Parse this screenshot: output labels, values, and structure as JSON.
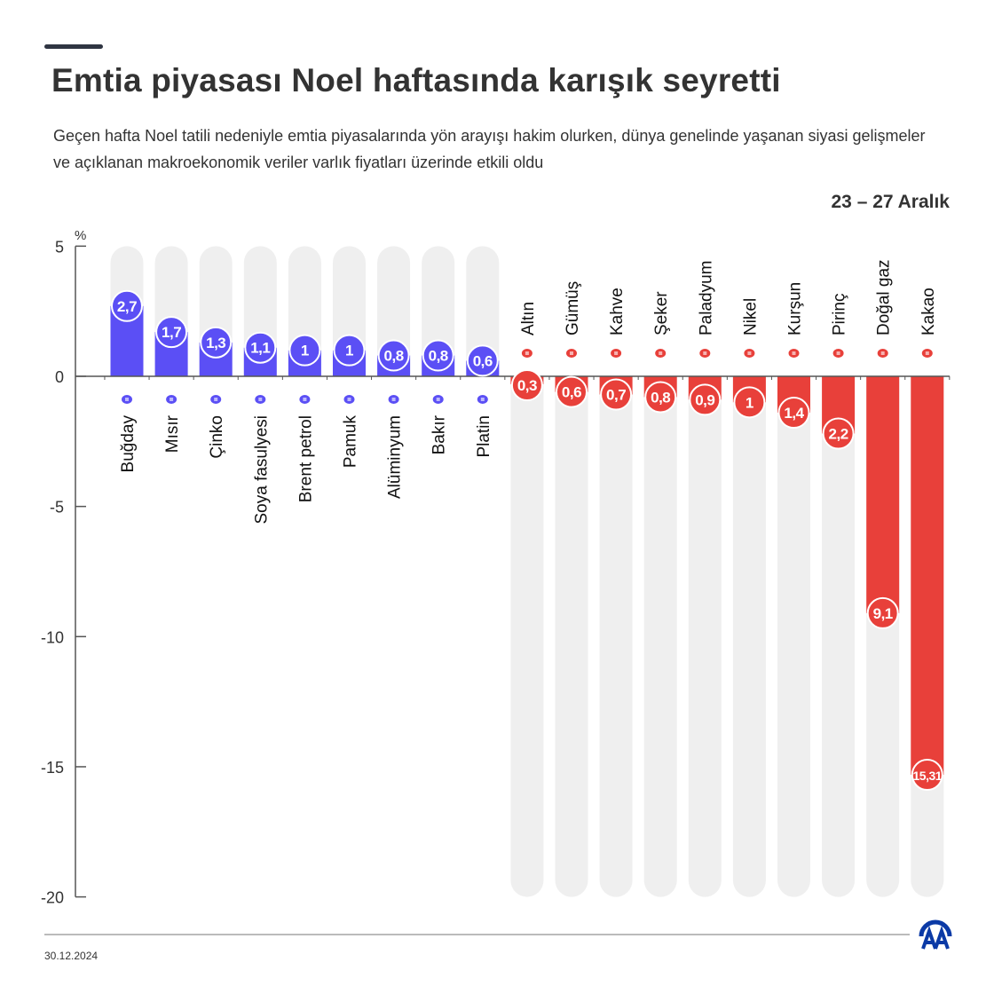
{
  "title": "Emtia piyasası Noel haftasında karışık seyretti",
  "subtitle": "Geçen hafta Noel tatili nedeniyle emtia piyasalarında yön arayışı hakim olurken, dünya genelinde yaşanan siyasi gelişmeler ve açıklanan makroekonomik veriler varlık fiyatları üzerinde etkili oldu",
  "period": "23 – 27 Aralık",
  "date": "30.12.2024",
  "logo_text": "AA",
  "colors": {
    "positive": "#5b4ff5",
    "negative": "#e8403a",
    "track": "#efefef",
    "axis": "#555555"
  },
  "chart_data": {
    "type": "bar",
    "ylabel": "%",
    "ylim": [
      -20,
      5
    ],
    "yticks": [
      5,
      0,
      -5,
      -10,
      -15,
      -20
    ],
    "ytick_labels": [
      "5",
      "0",
      "-5",
      "-10",
      "-15",
      "-20"
    ],
    "grid": false,
    "categories": [
      "Buğday",
      "Mısır",
      "Çinko",
      "Soya fasulyesi",
      "Brent petrol",
      "Pamuk",
      "Alüminyum",
      "Bakır",
      "Platin",
      "Altın",
      "Gümüş",
      "Kahve",
      "Şeker",
      "Paladyum",
      "Nikel",
      "Kurşun",
      "Pirinç",
      "Doğal gaz",
      "Kakao"
    ],
    "values": [
      2.7,
      1.7,
      1.3,
      1.1,
      1,
      1,
      0.8,
      0.8,
      0.6,
      -0.3,
      -0.6,
      -0.7,
      -0.8,
      -0.9,
      -1,
      -1.4,
      -2.2,
      -9.1,
      -15.31
    ],
    "data_labels": [
      "2,7",
      "1,7",
      "1,3",
      "1,1",
      "1",
      "1",
      "0,8",
      "0,8",
      "0,6",
      "0,3",
      "0,6",
      "0,7",
      "0,8",
      "0,9",
      "1",
      "1,4",
      "2,2",
      "9,1",
      "15,31"
    ],
    "icons": [
      "wheat-icon",
      "corn-icon",
      "metal-bars-icon",
      "soybean-icon",
      "oil-barrel-icon",
      "cotton-icon",
      "metal-bars-icon",
      "metal-bars-icon",
      "metal-bars-icon",
      "metal-bars-icon",
      "metal-bars-icon",
      "coffee-bean-icon",
      "sugar-sack-icon",
      "metal-bars-icon",
      "metal-bars-icon",
      "metal-bars-icon",
      "rice-sack-icon",
      "flame-icon",
      "cocoa-icon"
    ]
  }
}
